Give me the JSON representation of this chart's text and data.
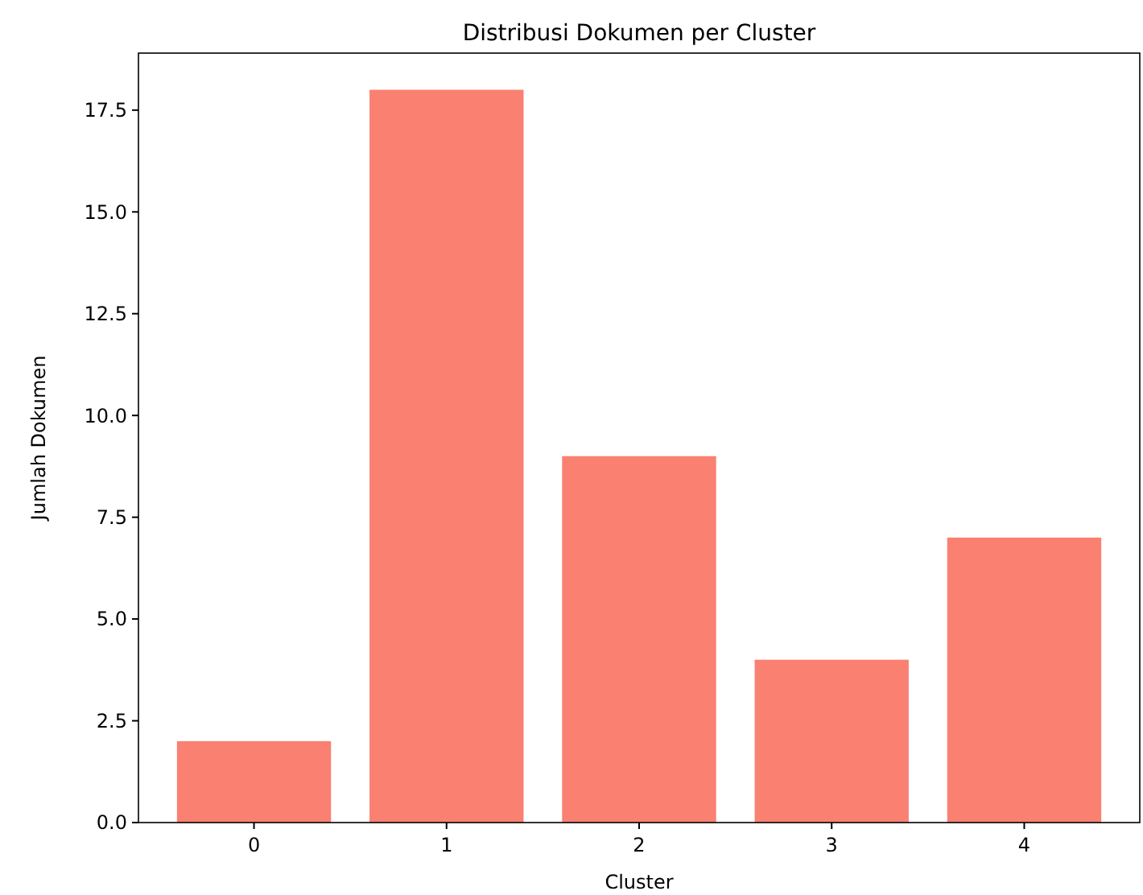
{
  "chart_data": {
    "type": "bar",
    "title": "Distribusi Dokumen per Cluster",
    "xlabel": "Cluster",
    "ylabel": "Jumlah Dokumen",
    "categories": [
      "0",
      "1",
      "2",
      "3",
      "4"
    ],
    "values": [
      2,
      18,
      9,
      4,
      7
    ],
    "color": "#fa8072",
    "ylim": [
      0,
      18.9
    ],
    "yticks": [
      {
        "value": 0,
        "label": "0.0"
      },
      {
        "value": 2.5,
        "label": "2.5"
      },
      {
        "value": 5,
        "label": "5.0"
      },
      {
        "value": 7.5,
        "label": "7.5"
      },
      {
        "value": 10,
        "label": "10.0"
      },
      {
        "value": 12.5,
        "label": "12.5"
      },
      {
        "value": 15,
        "label": "15.0"
      },
      {
        "value": 17.5,
        "label": "17.5"
      }
    ],
    "grid": false
  }
}
